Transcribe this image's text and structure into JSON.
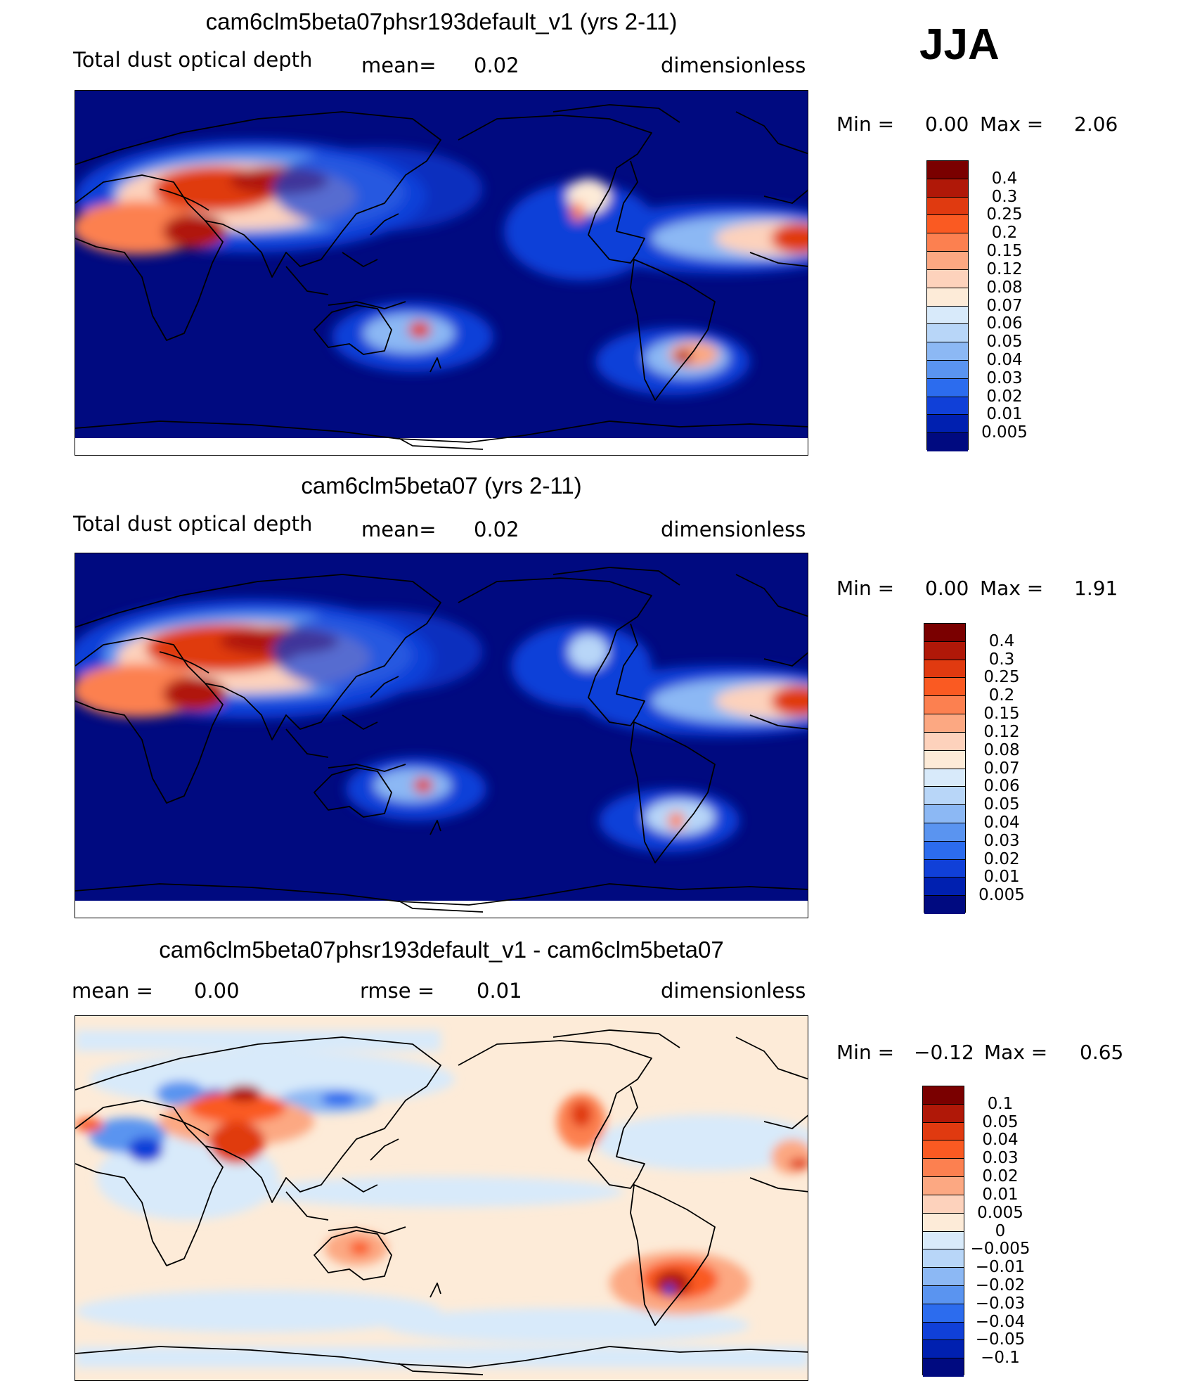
{
  "season": "JJA",
  "panels": [
    {
      "title": "cam6clm5beta07phsr193default_v1 (yrs 2-11)",
      "var_label": "Total dust optical depth",
      "mean_label": "mean=",
      "mean_value": "0.02",
      "units": "dimensionless",
      "min_label": "Min =",
      "min_value": "0.00",
      "max_label": "Max =",
      "max_value": "2.06",
      "colorbar": {
        "labels": [
          "0.4",
          "0.3",
          "0.25",
          "0.2",
          "0.15",
          "0.12",
          "0.08",
          "0.07",
          "0.06",
          "0.05",
          "0.04",
          "0.03",
          "0.02",
          "0.01",
          "0.005"
        ],
        "colors": [
          "#7a0000",
          "#b01808",
          "#e03a10",
          "#fa5a22",
          "#fc8050",
          "#fca882",
          "#fdd2bc",
          "#fdebd8",
          "#d8eafa",
          "#b8d6f8",
          "#8cb8f4",
          "#5a94f0",
          "#2c6cee",
          "#1040d8",
          "#0020b0",
          "#000a80"
        ]
      }
    },
    {
      "title": "cam6clm5beta07 (yrs 2-11)",
      "var_label": "Total dust optical depth",
      "mean_label": "mean=",
      "mean_value": "0.02",
      "units": "dimensionless",
      "min_label": "Min =",
      "min_value": "0.00",
      "max_label": "Max =",
      "max_value": "1.91",
      "colorbar": {
        "labels": [
          "0.4",
          "0.3",
          "0.25",
          "0.2",
          "0.15",
          "0.12",
          "0.08",
          "0.07",
          "0.06",
          "0.05",
          "0.04",
          "0.03",
          "0.02",
          "0.01",
          "0.005"
        ],
        "colors": [
          "#7a0000",
          "#b01808",
          "#e03a10",
          "#fa5a22",
          "#fc8050",
          "#fca882",
          "#fdd2bc",
          "#fdebd8",
          "#d8eafa",
          "#b8d6f8",
          "#8cb8f4",
          "#5a94f0",
          "#2c6cee",
          "#1040d8",
          "#0020b0",
          "#000a80"
        ]
      }
    },
    {
      "title": "cam6clm5beta07phsr193default_v1 - cam6clm5beta07",
      "mean_label": "mean =",
      "mean_value": "0.00",
      "rmse_label": "rmse =",
      "rmse_value": "0.01",
      "units": "dimensionless",
      "min_label": "Min =",
      "min_value": "−0.12",
      "max_label": "Max =",
      "max_value": "0.65",
      "colorbar": {
        "labels": [
          "0.1",
          "0.05",
          "0.04",
          "0.03",
          "0.02",
          "0.01",
          "0.005",
          "0",
          "−0.005",
          "−0.01",
          "−0.02",
          "−0.03",
          "−0.04",
          "−0.05",
          "−0.1"
        ],
        "colors": [
          "#7a0000",
          "#b01808",
          "#e03a10",
          "#fa5a22",
          "#fc8050",
          "#fca882",
          "#fdd2bc",
          "#fdebd8",
          "#d8eafa",
          "#b8d6f8",
          "#8cb8f4",
          "#5a94f0",
          "#2c6cee",
          "#1040d8",
          "#0020b0",
          "#000a80"
        ]
      }
    }
  ]
}
